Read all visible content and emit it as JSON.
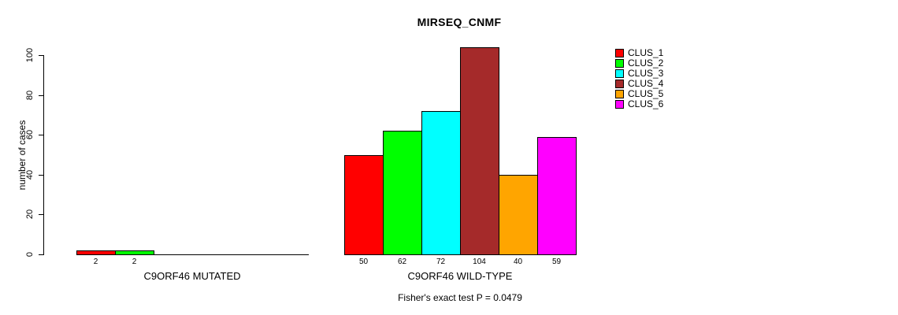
{
  "chart_data": {
    "type": "bar",
    "title": "MIRSEQ_CNMF",
    "ylabel": "number of cases",
    "xlabel": "",
    "ylim": [
      0,
      100
    ],
    "yticks": [
      0,
      20,
      40,
      60,
      80,
      100
    ],
    "grid": false,
    "legend_position": "right",
    "series_labels": [
      "CLUS_1",
      "CLUS_2",
      "CLUS_3",
      "CLUS_4",
      "CLUS_5",
      "CLUS_6"
    ],
    "series_colors": [
      "#ff0000",
      "#00ff00",
      "#00ffff",
      "#a52a2a",
      "#ffa500",
      "#ff00ff"
    ],
    "groups": [
      {
        "label": "C9ORF46 MUTATED",
        "values": [
          2,
          2,
          0,
          0,
          0,
          0
        ]
      },
      {
        "label": "C9ORF46 WILD-TYPE",
        "values": [
          50,
          62,
          72,
          104,
          40,
          59
        ]
      }
    ],
    "annotation": "Fisher's exact test P = 0.0479"
  }
}
